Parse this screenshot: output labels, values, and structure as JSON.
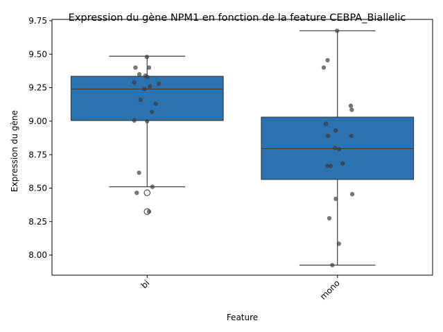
{
  "chart_data": {
    "type": "box",
    "title": "Expression du gène NPM1 en fonction de la feature CEBPA_Biallelic",
    "xlabel": "Feature",
    "ylabel": "Expression du gène",
    "categories": [
      "bi",
      "mono"
    ],
    "ylim": [
      7.85,
      9.76
    ],
    "yticks": [
      8.0,
      8.25,
      8.5,
      8.75,
      9.0,
      9.25,
      9.5,
      9.75
    ],
    "ytick_labels": [
      "8.00",
      "8.25",
      "8.50",
      "8.75",
      "9.00",
      "9.25",
      "9.50",
      "9.75"
    ],
    "grid": false,
    "box_color": "#2b72b0",
    "point_color": "#3d3d3d",
    "boxes": [
      {
        "category": "bi",
        "whisker_low": 8.51,
        "q1": 9.005,
        "median": 9.24,
        "q3": 9.335,
        "whisker_high": 9.485,
        "outliers": [
          8.465,
          8.325
        ]
      },
      {
        "category": "mono",
        "whisker_low": 7.925,
        "q1": 8.565,
        "median": 8.795,
        "q3": 9.03,
        "whisker_high": 9.675,
        "outliers": []
      }
    ],
    "points": [
      {
        "category": "bi",
        "values": [
          9.48,
          9.4,
          9.4,
          9.35,
          9.34,
          9.33,
          9.29,
          9.28,
          9.26,
          9.24,
          9.16,
          9.13,
          9.07,
          9.005,
          9.0,
          8.615,
          8.51,
          8.465,
          8.325
        ]
      },
      {
        "category": "mono",
        "values": [
          9.675,
          9.455,
          9.4,
          9.115,
          9.085,
          8.98,
          8.93,
          8.89,
          8.89,
          8.8,
          8.79,
          8.685,
          8.665,
          8.665,
          8.455,
          8.42,
          8.275,
          8.085,
          7.925
        ]
      }
    ]
  }
}
